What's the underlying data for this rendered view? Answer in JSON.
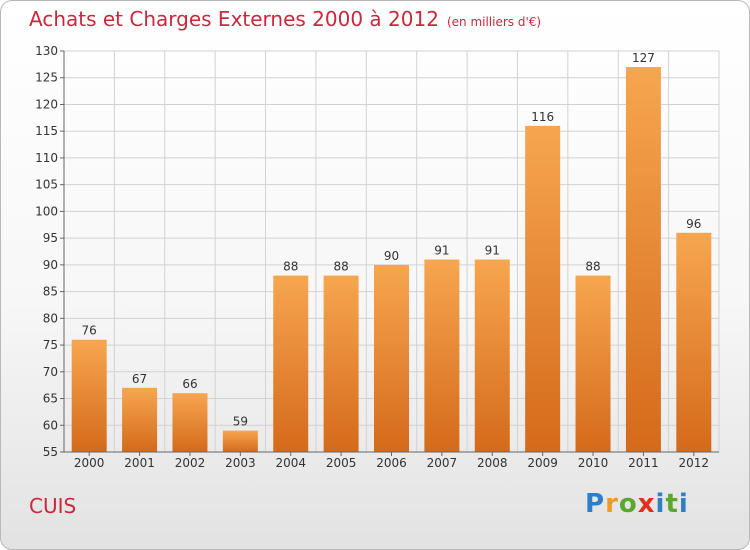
{
  "header": {
    "title": "Achats et Charges Externes 2000 à 2012",
    "unit": "(en milliers d'€)"
  },
  "footer": {
    "place": "CUIS",
    "logo": "Proxiti"
  },
  "colors": {
    "title": "#c8293c",
    "bar_top": "#f7a650",
    "bar_bottom": "#d46a1a",
    "grid": "#d2d2d2"
  },
  "chart_data": {
    "type": "bar",
    "title": "Achats et Charges Externes 2000 à 2012",
    "subtitle": "(en milliers d'€)",
    "xlabel": "",
    "ylabel": "",
    "categories": [
      "2000",
      "2001",
      "2002",
      "2003",
      "2004",
      "2005",
      "2006",
      "2007",
      "2008",
      "2009",
      "2010",
      "2011",
      "2012"
    ],
    "values": [
      76,
      67,
      66,
      59,
      88,
      88,
      90,
      91,
      91,
      116,
      88,
      127,
      96
    ],
    "ylim": [
      55,
      130
    ],
    "yticks": [
      55,
      60,
      65,
      70,
      75,
      80,
      85,
      90,
      95,
      100,
      105,
      110,
      115,
      120,
      125,
      130
    ],
    "grid": true,
    "legend": "none"
  }
}
